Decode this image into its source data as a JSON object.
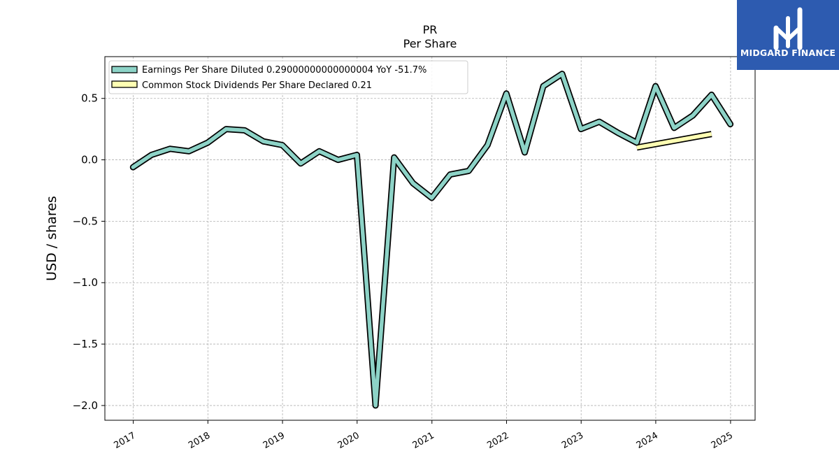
{
  "chart_data": {
    "type": "line",
    "title": "PR",
    "subtitle": "Per  Share",
    "xlabel": "",
    "ylabel": "USD / shares",
    "xlim": [
      "2016-08-15",
      "2025-05-01"
    ],
    "ylim": [
      -2.12,
      0.84
    ],
    "x_ticks": [
      "2017",
      "2018",
      "2019",
      "2020",
      "2021",
      "2022",
      "2023",
      "2024",
      "2025"
    ],
    "y_ticks": [
      {
        "value": 0.5,
        "label": "0.5"
      },
      {
        "value": 0.0,
        "label": "0.0"
      },
      {
        "value": -0.5,
        "label": "−0.5"
      },
      {
        "value": -1.0,
        "label": "−1.0"
      },
      {
        "value": -1.5,
        "label": "−1.5"
      },
      {
        "value": -2.0,
        "label": "−2.0"
      }
    ],
    "grid": true,
    "legend_position": "top-left",
    "series": [
      {
        "name": "Earnings Per Share Diluted",
        "legend_label": "Earnings Per Share Diluted  0.29000000000000004 YoY -51.7%",
        "color": "#8dd3c7",
        "x": [
          "2016-12-31",
          "2017-03-31",
          "2017-06-30",
          "2017-09-30",
          "2017-12-31",
          "2018-03-31",
          "2018-06-30",
          "2018-09-30",
          "2018-12-31",
          "2019-03-31",
          "2019-06-30",
          "2019-09-30",
          "2019-12-31",
          "2020-03-31",
          "2020-06-30",
          "2020-09-30",
          "2020-12-31",
          "2021-03-31",
          "2021-06-30",
          "2021-09-30",
          "2021-12-31",
          "2022-03-31",
          "2022-06-30",
          "2022-09-30",
          "2022-12-31",
          "2023-03-31",
          "2023-06-30",
          "2023-09-30",
          "2023-12-31",
          "2024-03-31",
          "2024-06-30",
          "2024-09-30",
          "2024-12-31"
        ],
        "values": [
          -0.06,
          0.04,
          0.09,
          0.07,
          0.14,
          0.25,
          0.24,
          0.15,
          0.12,
          -0.03,
          0.07,
          0.0,
          0.04,
          -2.0,
          0.02,
          -0.19,
          -0.31,
          -0.12,
          -0.09,
          0.12,
          0.54,
          0.06,
          0.6,
          0.7,
          0.25,
          0.31,
          0.22,
          0.14,
          0.6,
          0.26,
          0.36,
          0.53,
          0.29
        ]
      },
      {
        "name": "Common Stock Dividends Per Share Declared",
        "legend_label": "Common Stock Dividends Per Share Declared  0.21",
        "color": "#ffffb3",
        "x": [
          "2023-09-30",
          "2024-09-30"
        ],
        "values": [
          0.1,
          0.21
        ]
      }
    ]
  },
  "branding": {
    "logo_text": "MIDGARD FINANCE",
    "logo_color": "#2d5bb0"
  }
}
